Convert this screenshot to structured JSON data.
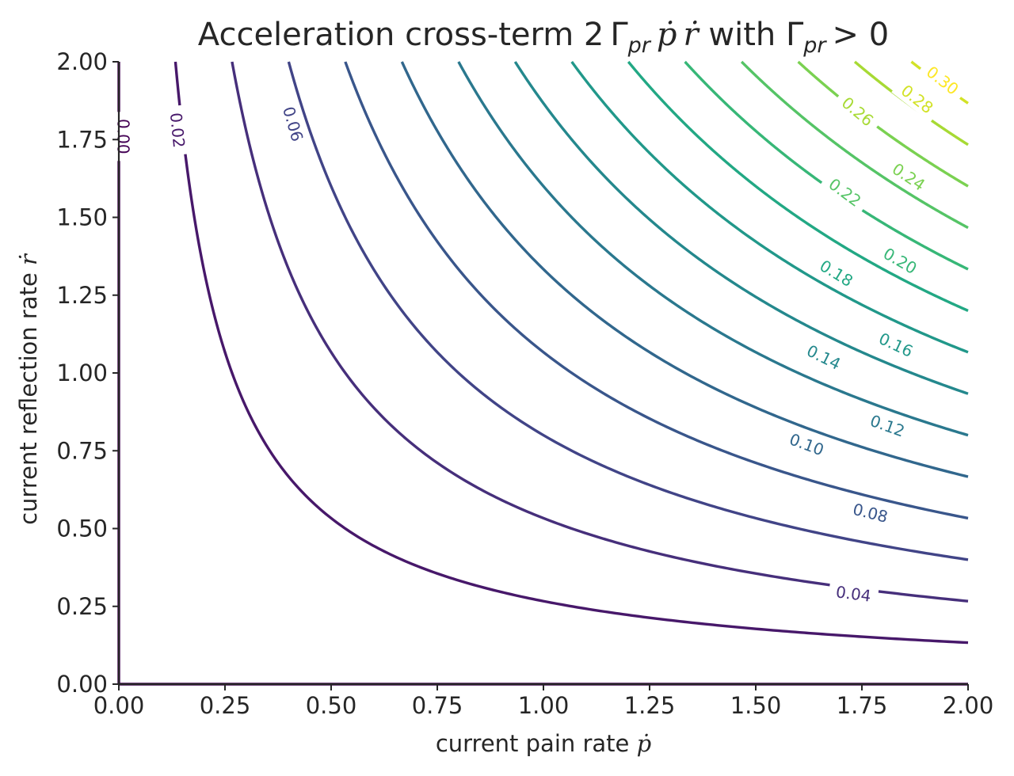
{
  "chart_data": {
    "type": "contour",
    "title_main": "Acceleration cross-term 2",
    "title_gamma": "Γ",
    "title_sub": "pr",
    "title_p": "ṗ",
    "title_r": "ṙ",
    "title_with": "with",
    "title_gamma2": "Γ",
    "title_sub2": "pr",
    "title_gt": "> 0",
    "xlabel_text": "current pain rate",
    "xlabel_sym": "ṗ",
    "ylabel_text": "current reflection rate",
    "ylabel_sym": "ṙ",
    "xlim": [
      0,
      2
    ],
    "ylim": [
      0,
      2
    ],
    "xticks": [
      "0.00",
      "0.25",
      "0.50",
      "0.75",
      "1.00",
      "1.25",
      "1.50",
      "1.75",
      "2.00"
    ],
    "yticks": [
      "0.00",
      "0.25",
      "0.50",
      "0.75",
      "1.00",
      "1.25",
      "1.50",
      "1.75",
      "2.00"
    ],
    "levels": [
      0.0,
      0.02,
      0.04,
      0.06,
      0.08,
      0.1,
      0.12,
      0.14,
      0.16,
      0.18,
      0.2,
      0.22,
      0.24,
      0.26,
      0.28,
      0.3
    ],
    "level_labels": [
      {
        "text": "0.00",
        "x": 0.01,
        "y": 1.76
      },
      {
        "text": "0.02",
        "x": 0.138,
        "y": 1.78
      },
      {
        "text": "0.06",
        "x": 0.41,
        "y": 1.8
      },
      {
        "text": "0.04",
        "x": 1.73,
        "y": 0.29
      },
      {
        "text": "0.08",
        "x": 1.77,
        "y": 0.55
      },
      {
        "text": "0.10",
        "x": 1.62,
        "y": 0.77
      },
      {
        "text": "0.12",
        "x": 1.81,
        "y": 0.83
      },
      {
        "text": "0.14",
        "x": 1.66,
        "y": 1.05
      },
      {
        "text": "0.16",
        "x": 1.83,
        "y": 1.09
      },
      {
        "text": "0.18",
        "x": 1.69,
        "y": 1.32
      },
      {
        "text": "0.20",
        "x": 1.84,
        "y": 1.36
      },
      {
        "text": "0.22",
        "x": 1.71,
        "y": 1.58
      },
      {
        "text": "0.24",
        "x": 1.86,
        "y": 1.63
      },
      {
        "text": "0.26",
        "x": 1.74,
        "y": 1.84
      },
      {
        "text": "0.28",
        "x": 1.88,
        "y": 1.88
      },
      {
        "text": "0.30",
        "x": 1.94,
        "y": 1.94
      }
    ],
    "colormap": [
      "#440154",
      "#482475",
      "#414487",
      "#355f8d",
      "#2a788e",
      "#21908d",
      "#22a884",
      "#42be71",
      "#7ad151",
      "#bddf26",
      "#fde725"
    ],
    "grid": false,
    "legend": "none"
  }
}
